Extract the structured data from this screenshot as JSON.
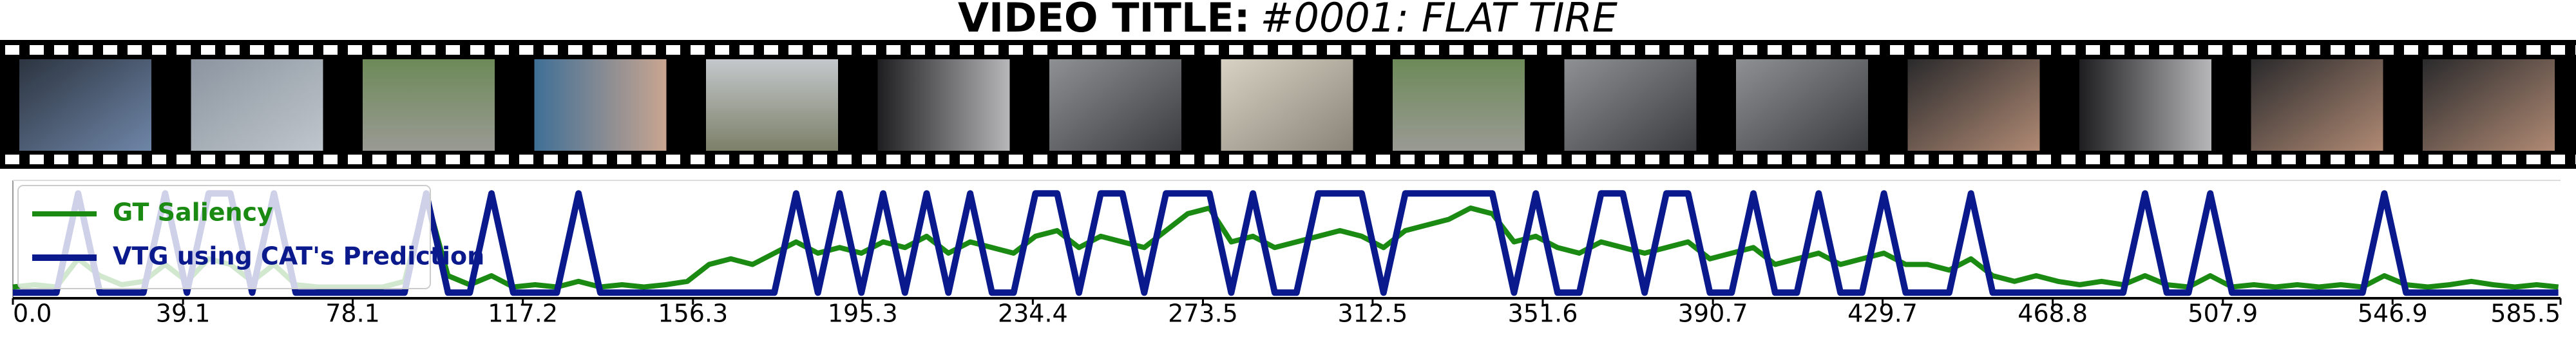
{
  "chart_data": {
    "type": "line",
    "title": "VIDEO TITLE:",
    "subtitle": "#0001: FLAT TIRE",
    "x": [
      0,
      5,
      10,
      15,
      20,
      25,
      30,
      35,
      40,
      45,
      50,
      55,
      60,
      65,
      70,
      75,
      80,
      85,
      90,
      95,
      100,
      105,
      110,
      115,
      120,
      125,
      130,
      135,
      140,
      145,
      150,
      155,
      160,
      165,
      170,
      175,
      180,
      185,
      190,
      195,
      200,
      205,
      210,
      215,
      220,
      225,
      230,
      235,
      240,
      245,
      250,
      255,
      260,
      265,
      270,
      275,
      280,
      285,
      290,
      295,
      300,
      305,
      310,
      315,
      320,
      325,
      330,
      335,
      340,
      345,
      350,
      355,
      360,
      365,
      370,
      375,
      380,
      385,
      390,
      395,
      400,
      405,
      410,
      415,
      420,
      425,
      430,
      435,
      440,
      445,
      450,
      455,
      460,
      465,
      470,
      475,
      480,
      485,
      490,
      495,
      500,
      505,
      510,
      515,
      520,
      525,
      530,
      535,
      540,
      545,
      550,
      555,
      560,
      565,
      570,
      575,
      580,
      585
    ],
    "series": [
      {
        "name": "GT Saliency",
        "color": "#1a8a12",
        "values": [
          0.1,
          0.12,
          0.1,
          0.35,
          0.2,
          0.12,
          0.15,
          0.3,
          0.15,
          0.35,
          0.3,
          0.15,
          0.3,
          0.12,
          0.1,
          0.1,
          0.1,
          0.1,
          0.15,
          0.9,
          0.2,
          0.12,
          0.2,
          0.1,
          0.12,
          0.1,
          0.15,
          0.1,
          0.12,
          0.1,
          0.12,
          0.15,
          0.3,
          0.35,
          0.3,
          0.4,
          0.5,
          0.4,
          0.45,
          0.4,
          0.5,
          0.45,
          0.55,
          0.4,
          0.5,
          0.45,
          0.4,
          0.55,
          0.6,
          0.45,
          0.55,
          0.5,
          0.45,
          0.6,
          0.75,
          0.8,
          0.5,
          0.55,
          0.45,
          0.5,
          0.55,
          0.6,
          0.55,
          0.45,
          0.6,
          0.65,
          0.7,
          0.8,
          0.75,
          0.5,
          0.55,
          0.45,
          0.4,
          0.5,
          0.45,
          0.4,
          0.45,
          0.5,
          0.35,
          0.4,
          0.45,
          0.3,
          0.35,
          0.4,
          0.3,
          0.35,
          0.4,
          0.3,
          0.3,
          0.25,
          0.35,
          0.2,
          0.15,
          0.2,
          0.15,
          0.12,
          0.15,
          0.12,
          0.2,
          0.12,
          0.1,
          0.2,
          0.1,
          0.12,
          0.1,
          0.12,
          0.1,
          0.12,
          0.1,
          0.2,
          0.12,
          0.1,
          0.12,
          0.15,
          0.12,
          0.1,
          0.12,
          0.1
        ]
      },
      {
        "name": "VTG using CAT's Prediction",
        "color": "#0a1a8c",
        "values": [
          0.05,
          0.05,
          0.05,
          0.93,
          0.05,
          0.05,
          0.05,
          0.93,
          0.05,
          0.93,
          0.93,
          0.05,
          0.93,
          0.05,
          0.05,
          0.05,
          0.05,
          0.05,
          0.05,
          0.93,
          0.05,
          0.05,
          0.93,
          0.05,
          0.05,
          0.05,
          0.93,
          0.05,
          0.05,
          0.05,
          0.05,
          0.05,
          0.05,
          0.05,
          0.05,
          0.05,
          0.93,
          0.05,
          0.93,
          0.05,
          0.93,
          0.05,
          0.93,
          0.05,
          0.93,
          0.05,
          0.05,
          0.93,
          0.93,
          0.05,
          0.93,
          0.93,
          0.05,
          0.93,
          0.93,
          0.93,
          0.05,
          0.93,
          0.05,
          0.05,
          0.93,
          0.93,
          0.93,
          0.05,
          0.93,
          0.93,
          0.93,
          0.93,
          0.93,
          0.05,
          0.93,
          0.05,
          0.05,
          0.93,
          0.93,
          0.05,
          0.93,
          0.93,
          0.05,
          0.05,
          0.93,
          0.05,
          0.05,
          0.93,
          0.05,
          0.05,
          0.93,
          0.05,
          0.05,
          0.05,
          0.93,
          0.05,
          0.05,
          0.05,
          0.05,
          0.05,
          0.05,
          0.05,
          0.93,
          0.05,
          0.05,
          0.93,
          0.05,
          0.05,
          0.05,
          0.05,
          0.05,
          0.05,
          0.05,
          0.93,
          0.05,
          0.05,
          0.05,
          0.05,
          0.05,
          0.05,
          0.05,
          0.05
        ]
      }
    ],
    "xlim": [
      0,
      585.5
    ],
    "ylim": [
      0,
      1
    ],
    "xticks": [
      {
        "value": 0,
        "label": "0.0"
      },
      39.1,
      78.1,
      117.2,
      156.3,
      195.3,
      234.4,
      273.5,
      312.5,
      351.6,
      390.7,
      429.7,
      468.8,
      507.9,
      546.9,
      585.5
    ],
    "legend": "upper left",
    "grid": false
  }
}
